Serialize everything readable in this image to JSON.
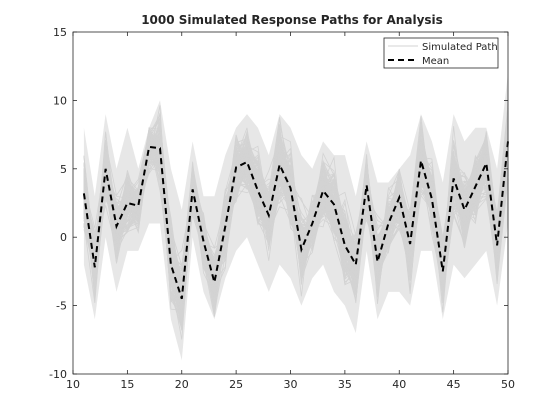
{
  "chart_data": {
    "type": "line",
    "title": "1000 Simulated Response Paths for Analysis",
    "xlabel": "",
    "ylabel": "",
    "xlim": [
      10,
      50
    ],
    "ylim": [
      -10,
      15
    ],
    "xticks": [
      10,
      15,
      20,
      25,
      30,
      35,
      40,
      45,
      50
    ],
    "yticks": [
      -10,
      -5,
      0,
      5,
      10,
      15
    ],
    "grid": false,
    "legend": {
      "placement": "top-right",
      "entries": [
        "Simulated Path",
        "Mean"
      ]
    },
    "colors": {
      "simulated": "#d3d3d3",
      "mean": "#000000",
      "axes": "#262626"
    },
    "series": [
      {
        "name": "Simulated Path",
        "description_count": 1000,
        "x": [
          11,
          12,
          13,
          14,
          15,
          16,
          17,
          18,
          19,
          20,
          21,
          22,
          23,
          24,
          25,
          26,
          27,
          28,
          29,
          30,
          31,
          32,
          33,
          34,
          35,
          36,
          37,
          38,
          39,
          40,
          41,
          42,
          43,
          44,
          45,
          46,
          47,
          48,
          49,
          50
        ],
        "lower": [
          -2,
          -6,
          0,
          -4,
          -1,
          -1,
          1,
          1,
          -6,
          -9,
          0,
          -4,
          -6,
          -3,
          -1,
          0,
          -2,
          -4,
          -2,
          -3,
          -5,
          -3,
          -2,
          -4,
          -5,
          -7,
          -1,
          -6,
          -4,
          -4,
          -5,
          -1,
          -1,
          -6,
          -2,
          -3,
          -2,
          -1,
          -5,
          1
        ],
        "upper": [
          8,
          3,
          9,
          5,
          8,
          5,
          8,
          10,
          5,
          2,
          7,
          3,
          3,
          6,
          8,
          9,
          8,
          6,
          9,
          8,
          6,
          5,
          7,
          6,
          6,
          3,
          7,
          4,
          4,
          5,
          6,
          9,
          7,
          4,
          9,
          7,
          8,
          8,
          5,
          12
        ]
      },
      {
        "name": "Mean",
        "x": [
          11,
          12,
          13,
          14,
          15,
          16,
          17,
          18,
          19,
          20,
          21,
          22,
          23,
          24,
          25,
          26,
          27,
          28,
          29,
          30,
          31,
          32,
          33,
          34,
          35,
          36,
          37,
          38,
          39,
          40,
          41,
          42,
          43,
          44,
          45,
          46,
          47,
          48,
          49,
          50
        ],
        "values": [
          3.2,
          -2.2,
          5.0,
          0.8,
          2.5,
          2.3,
          6.6,
          6.5,
          -2.0,
          -4.5,
          3.5,
          -0.3,
          -3.3,
          0.8,
          5.1,
          5.5,
          3.4,
          1.6,
          5.3,
          3.6,
          -0.9,
          1.0,
          3.4,
          2.4,
          -0.6,
          -2.0,
          3.8,
          -1.8,
          1.0,
          2.9,
          -0.5,
          5.6,
          2.8,
          -2.5,
          4.3,
          2.0,
          3.7,
          5.4,
          -0.6,
          7.0
        ]
      }
    ]
  }
}
